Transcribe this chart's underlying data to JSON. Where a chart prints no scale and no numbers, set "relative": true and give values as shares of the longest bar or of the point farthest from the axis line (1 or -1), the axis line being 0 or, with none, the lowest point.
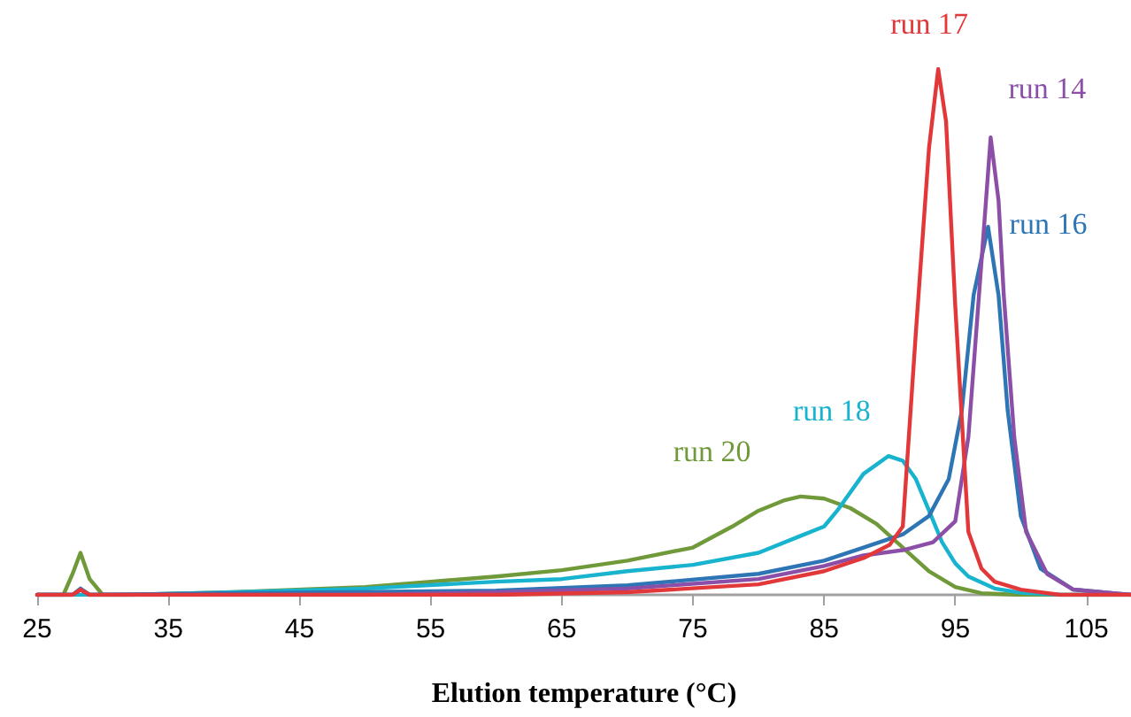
{
  "chart_data": {
    "type": "line",
    "relative": true,
    "xlabel": "Elution temperature (°C)",
    "xlim": [
      25,
      108.4
    ],
    "xticks": [
      25,
      35,
      45,
      55,
      65,
      75,
      85,
      95,
      105
    ],
    "grid": false,
    "legend": false,
    "marker": "none",
    "line_style": "solid",
    "series": [
      {
        "name": "run 17",
        "color": "#e2383a",
        "x": [
          25,
          27.7,
          28.3,
          29,
          40,
          60,
          70,
          80,
          85,
          88,
          90,
          91,
          92,
          93,
          93.7,
          94.3,
          95,
          96,
          97,
          98,
          100,
          103,
          108.4
        ],
        "values": [
          0,
          0,
          0.01,
          0,
          0,
          0,
          0.005,
          0.02,
          0.045,
          0.07,
          0.095,
          0.13,
          0.5,
          0.85,
          1,
          0.9,
          0.55,
          0.12,
          0.05,
          0.025,
          0.01,
          0,
          0
        ]
      },
      {
        "name": "run 14",
        "color": "#8b4fa8",
        "x": [
          25,
          27.7,
          28.3,
          29,
          50,
          60,
          70,
          80,
          85,
          88,
          91,
          93.3,
          95,
          96,
          96.9,
          97.7,
          98.3,
          98.7,
          99.5,
          100.4,
          102,
          104,
          108.4
        ],
        "values": [
          0,
          0,
          0.01,
          0,
          0,
          0.005,
          0.012,
          0.03,
          0.055,
          0.075,
          0.085,
          0.1,
          0.14,
          0.3,
          0.6,
          0.87,
          0.75,
          0.57,
          0.3,
          0.12,
          0.04,
          0.01,
          0
        ]
      },
      {
        "name": "run 16",
        "color": "#2e75b6",
        "x": [
          25,
          27.7,
          28.3,
          29,
          40,
          60,
          70,
          80,
          85,
          88,
          91,
          93,
          94.5,
          95.5,
          96.4,
          97.5,
          98.3,
          99,
          100,
          101.5,
          104,
          108.4
        ],
        "values": [
          0,
          0,
          0.012,
          0,
          0.003,
          0.008,
          0.018,
          0.04,
          0.065,
          0.09,
          0.115,
          0.15,
          0.22,
          0.35,
          0.57,
          0.7,
          0.57,
          0.35,
          0.15,
          0.05,
          0.01,
          0
        ]
      },
      {
        "name": "run 18",
        "color": "#17b3cf",
        "x": [
          25,
          32,
          40,
          50,
          60,
          65,
          70,
          75,
          80,
          83,
          85,
          86,
          88,
          89.9,
          91,
          92,
          93,
          94,
          95,
          96,
          98,
          100,
          103,
          108.4
        ],
        "values": [
          0,
          0,
          0.005,
          0.012,
          0.025,
          0.03,
          0.045,
          0.057,
          0.08,
          0.11,
          0.13,
          0.16,
          0.23,
          0.264,
          0.255,
          0.22,
          0.16,
          0.1,
          0.06,
          0.035,
          0.012,
          0.004,
          0,
          0
        ]
      },
      {
        "name": "run 20",
        "color": "#70993a",
        "x": [
          25,
          27,
          27.7,
          28.3,
          29,
          30,
          32,
          40,
          50,
          55,
          60,
          65,
          70,
          75,
          78,
          80,
          82,
          83.2,
          85,
          87,
          89,
          91,
          93,
          95,
          97,
          100,
          108.4
        ],
        "values": [
          0,
          0,
          0.04,
          0.08,
          0.03,
          0,
          0,
          0.005,
          0.015,
          0.025,
          0.035,
          0.047,
          0.065,
          0.09,
          0.13,
          0.16,
          0.18,
          0.187,
          0.183,
          0.165,
          0.135,
          0.09,
          0.045,
          0.015,
          0.003,
          0,
          0
        ]
      }
    ]
  }
}
